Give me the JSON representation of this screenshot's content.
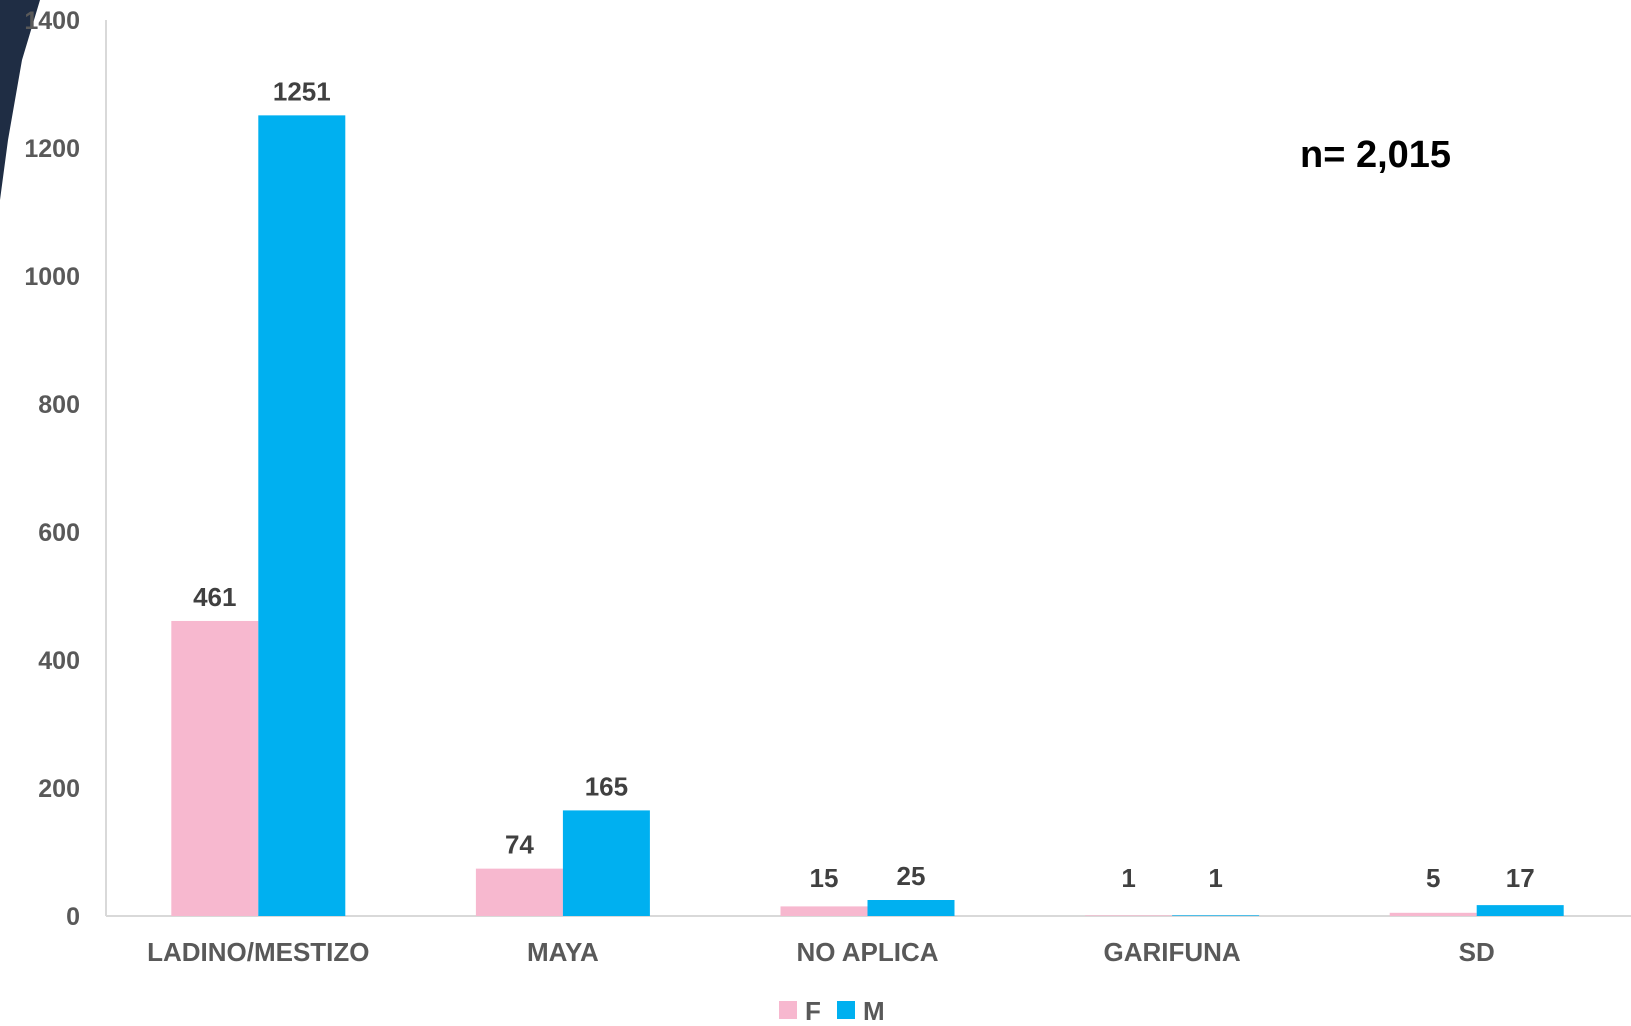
{
  "chart_data": {
    "type": "bar",
    "categories": [
      "LADINO/MESTIZO",
      "MAYA",
      "NO APLICA",
      "GARIFUNA",
      "SD"
    ],
    "series": [
      {
        "name": "F",
        "values": [
          461,
          74,
          15,
          1,
          5
        ]
      },
      {
        "name": "M",
        "values": [
          1251,
          165,
          25,
          1,
          17
        ]
      }
    ],
    "colors": {
      "F": "#f7b8cf",
      "M": "#00b0f0"
    },
    "ylim": [
      0,
      1400
    ],
    "yticks": [
      0,
      200,
      400,
      600,
      800,
      1000,
      1200,
      1400
    ],
    "annotation": "n= 2,015",
    "legend_position": "bottom",
    "grid": false
  }
}
